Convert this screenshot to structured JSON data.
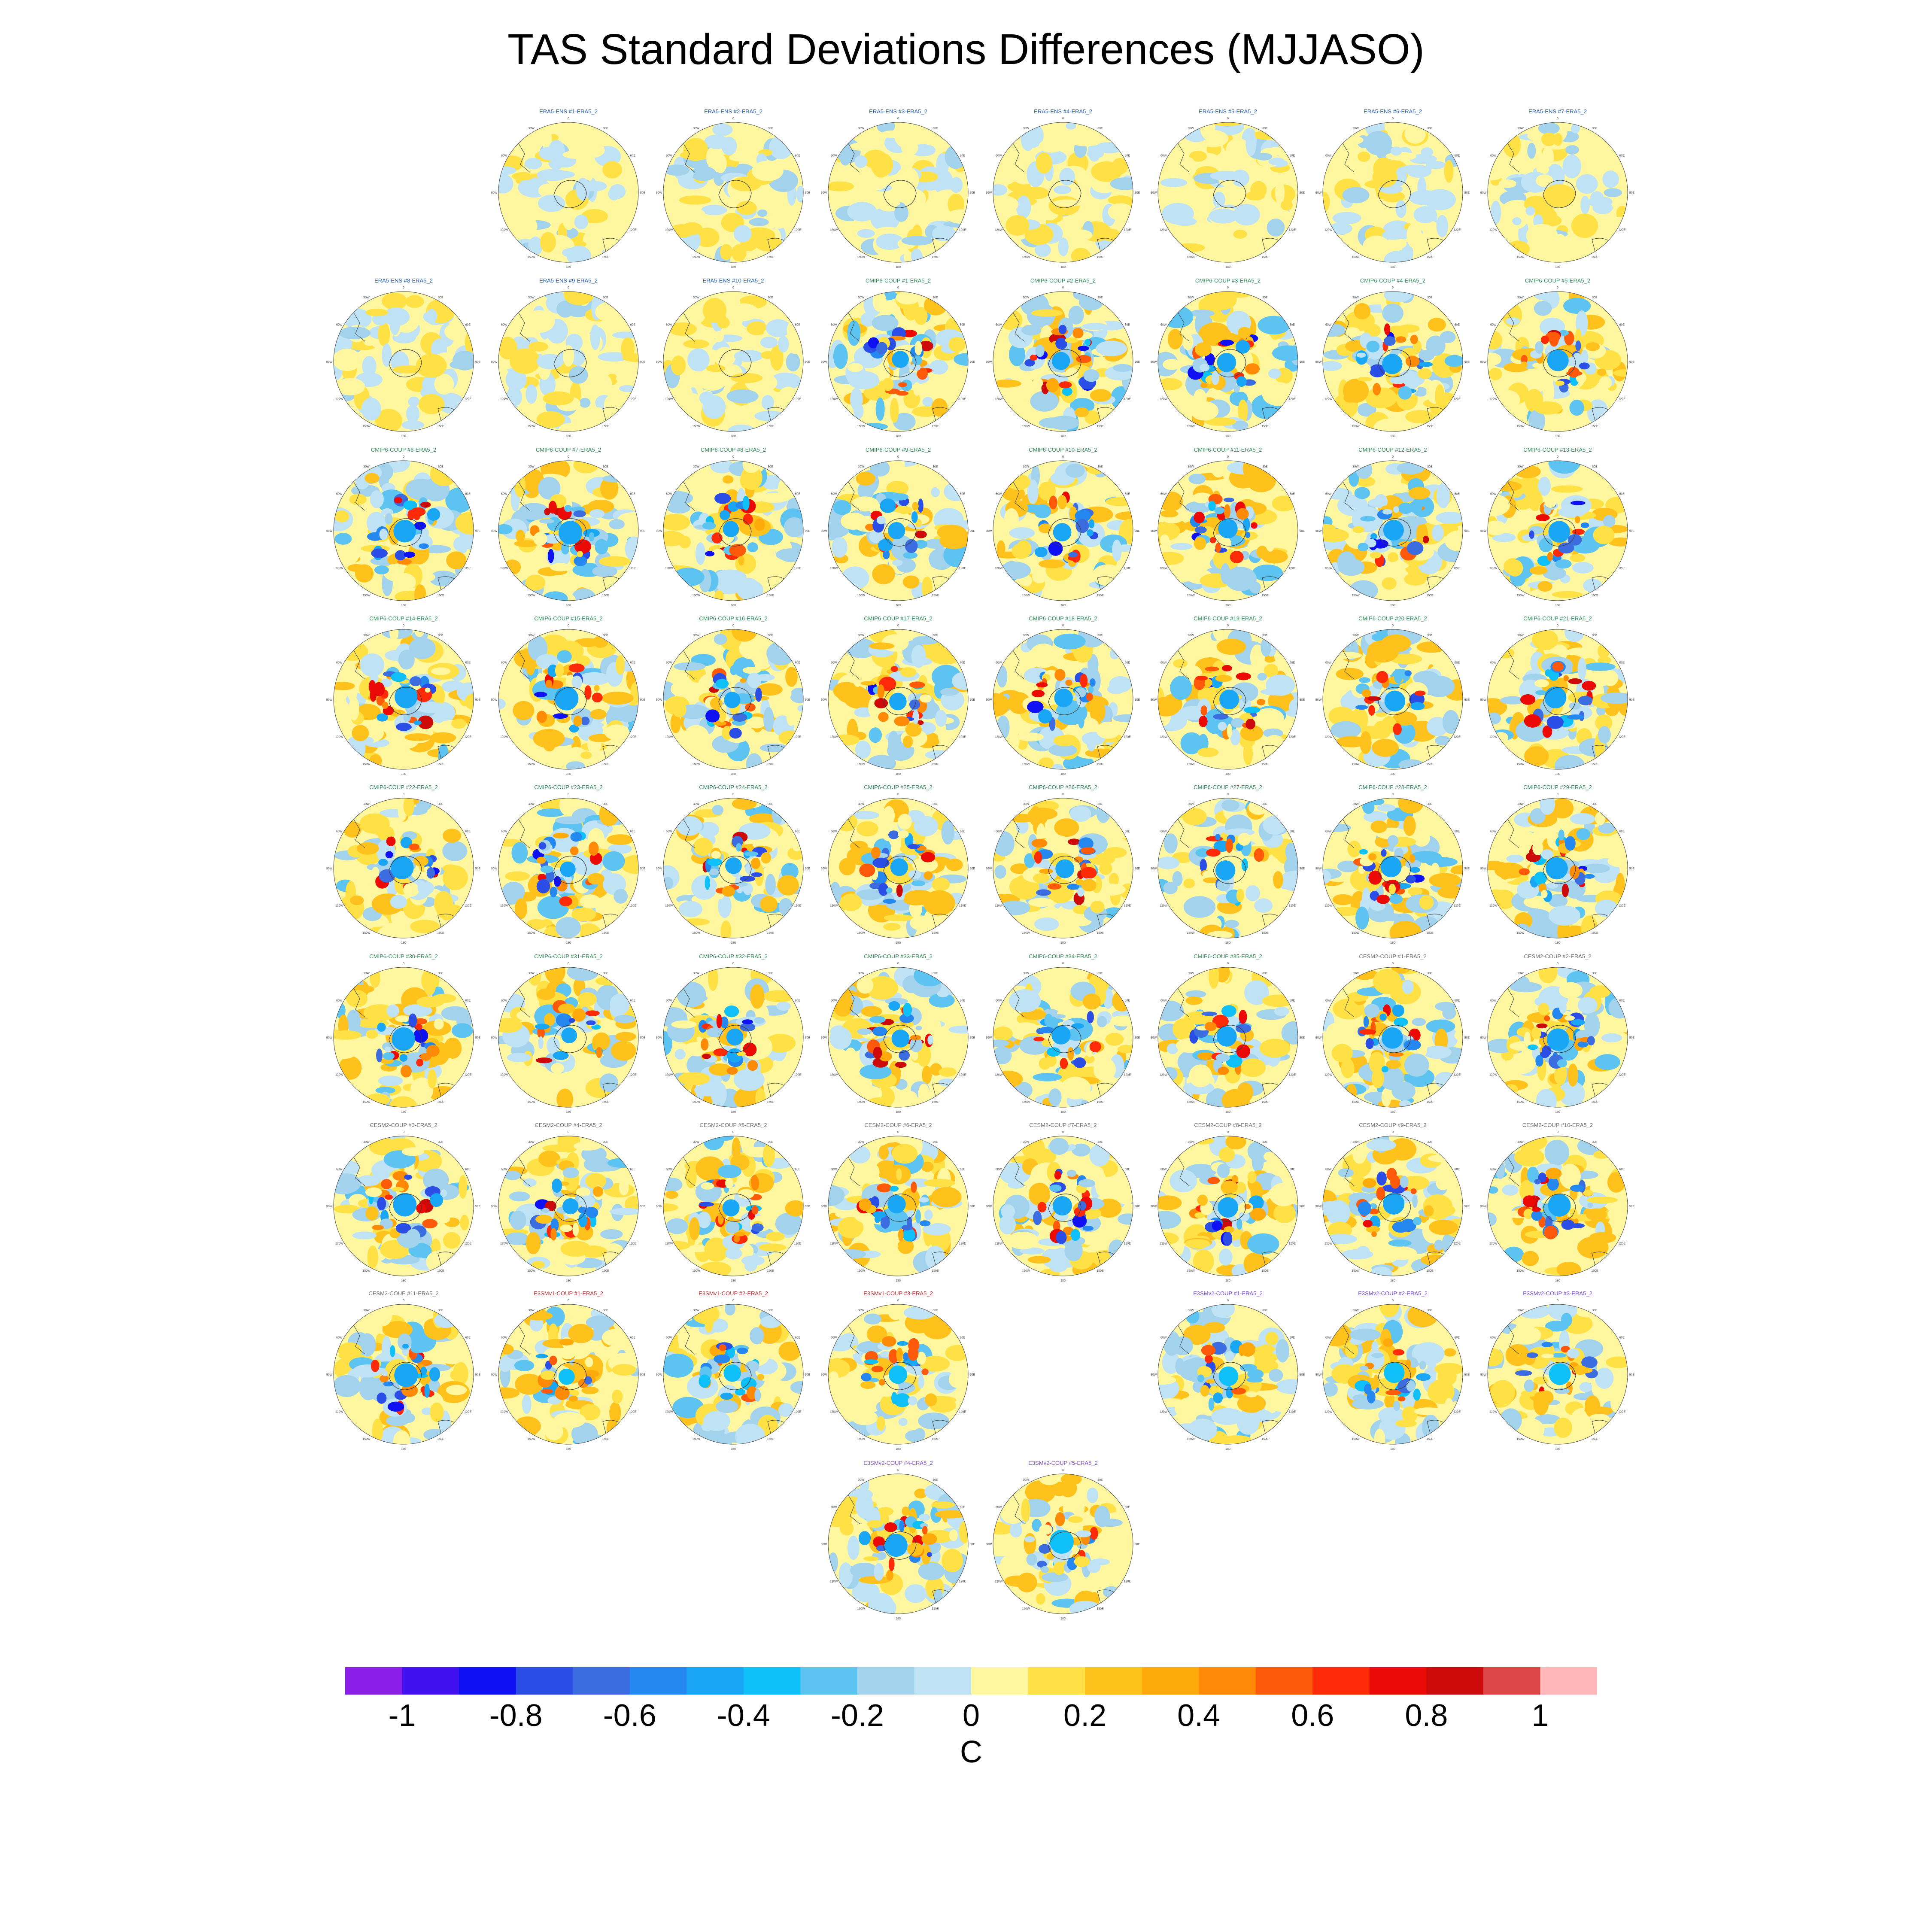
{
  "title": "TAS Standard Deviations Differences (MJJASO)",
  "colors": {
    "colorbar": [
      "#8b1fe8",
      "#4012f0",
      "#1010f5",
      "#2b4fe6",
      "#3b6de0",
      "#2488f0",
      "#18a6f5",
      "#0fc0f8",
      "#5dc3f0",
      "#a3d2ed",
      "#bfe3f5",
      "#fff6a0",
      "#ffe146",
      "#ffc21c",
      "#ffaa0a",
      "#ff8a06",
      "#ff5a0a",
      "#ff2a08",
      "#ec0a06",
      "#cc0a0a",
      "#dc4646",
      "#ffb6b6"
    ],
    "ocean_fill": "#c6e6f6",
    "ensemble_title": "#2060c0",
    "cmip6_title": "#2e8b57",
    "cesm2_title": "#707070",
    "e3sm1_title": "#b03030",
    "e3sm2_title": "#7a4fd0"
  },
  "chart_data": {
    "type": "heatmap",
    "title": "TAS Standard Deviations Differences (MJJASO)",
    "projection": "south-polar-stereographic",
    "colorbar": {
      "units": "C",
      "tick_labels": [
        "-1",
        "-0.8",
        "-0.6",
        "-0.4",
        "-0.2",
        "0",
        "0.2",
        "0.4",
        "0.6",
        "0.8",
        "1"
      ],
      "ticks": [
        -1,
        -0.8,
        -0.6,
        -0.4,
        -0.2,
        0,
        0.2,
        0.4,
        0.6,
        0.8,
        1
      ],
      "levels": [
        -1.1,
        -1,
        -0.9,
        -0.8,
        -0.7,
        -0.6,
        -0.5,
        -0.4,
        -0.3,
        -0.2,
        -0.1,
        0,
        0.1,
        0.2,
        0.3,
        0.4,
        0.5,
        0.6,
        0.7,
        0.8,
        0.9,
        1,
        1.1
      ]
    },
    "map_labels": [
      "0",
      "30E",
      "60E",
      "90E",
      "120E",
      "150E",
      "180",
      "150W",
      "120W",
      "90W",
      "60W",
      "30W"
    ],
    "panels": [
      {
        "label": "ERA5-ENS  #1-ERA5_2",
        "group": "ensemble",
        "strength": 0.15,
        "seed": 1
      },
      {
        "label": "ERA5-ENS  #2-ERA5_2",
        "group": "ensemble",
        "strength": 0.15,
        "seed": 2
      },
      {
        "label": "ERA5-ENS  #3-ERA5_2",
        "group": "ensemble",
        "strength": 0.15,
        "seed": 3
      },
      {
        "label": "ERA5-ENS  #4-ERA5_2",
        "group": "ensemble",
        "strength": 0.15,
        "seed": 4
      },
      {
        "label": "ERA5-ENS  #5-ERA5_2",
        "group": "ensemble",
        "strength": 0.15,
        "seed": 5
      },
      {
        "label": "ERA5-ENS  #6-ERA5_2",
        "group": "ensemble",
        "strength": 0.15,
        "seed": 6
      },
      {
        "label": "ERA5-ENS  #7-ERA5_2",
        "group": "ensemble",
        "strength": 0.15,
        "seed": 7
      },
      {
        "label": "ERA5-ENS  #8-ERA5_2",
        "group": "ensemble",
        "strength": 0.15,
        "seed": 8
      },
      {
        "label": "ERA5-ENS  #9-ERA5_2",
        "group": "ensemble",
        "strength": 0.15,
        "seed": 9
      },
      {
        "label": "ERA5-ENS  #10-ERA5_2",
        "group": "ensemble",
        "strength": 0.15,
        "seed": 10
      },
      {
        "label": "CMIP6-COUP  #1-ERA5_2",
        "group": "cmip6",
        "strength": 0.8,
        "seed": 11
      },
      {
        "label": "CMIP6-COUP  #2-ERA5_2",
        "group": "cmip6",
        "strength": 0.8,
        "seed": 12
      },
      {
        "label": "CMIP6-COUP  #3-ERA5_2",
        "group": "cmip6",
        "strength": 0.8,
        "seed": 13
      },
      {
        "label": "CMIP6-COUP  #4-ERA5_2",
        "group": "cmip6",
        "strength": 0.8,
        "seed": 14
      },
      {
        "label": "CMIP6-COUP  #5-ERA5_2",
        "group": "cmip6",
        "strength": 0.8,
        "seed": 15
      },
      {
        "label": "CMIP6-COUP  #6-ERA5_2",
        "group": "cmip6",
        "strength": 0.8,
        "seed": 16
      },
      {
        "label": "CMIP6-COUP  #7-ERA5_2",
        "group": "cmip6",
        "strength": 0.8,
        "seed": 17
      },
      {
        "label": "CMIP6-COUP  #8-ERA5_2",
        "group": "cmip6",
        "strength": 0.8,
        "seed": 18
      },
      {
        "label": "CMIP6-COUP  #9-ERA5_2",
        "group": "cmip6",
        "strength": 0.8,
        "seed": 19
      },
      {
        "label": "CMIP6-COUP  #10-ERA5_2",
        "group": "cmip6",
        "strength": 0.8,
        "seed": 20
      },
      {
        "label": "CMIP6-COUP  #11-ERA5_2",
        "group": "cmip6",
        "strength": 0.8,
        "seed": 21
      },
      {
        "label": "CMIP6-COUP  #12-ERA5_2",
        "group": "cmip6",
        "strength": 0.8,
        "seed": 22
      },
      {
        "label": "CMIP6-COUP  #13-ERA5_2",
        "group": "cmip6",
        "strength": 0.8,
        "seed": 23
      },
      {
        "label": "CMIP6-COUP  #14-ERA5_2",
        "group": "cmip6",
        "strength": 0.8,
        "seed": 24
      },
      {
        "label": "CMIP6-COUP  #15-ERA5_2",
        "group": "cmip6",
        "strength": 0.8,
        "seed": 25
      },
      {
        "label": "CMIP6-COUP  #16-ERA5_2",
        "group": "cmip6",
        "strength": 0.8,
        "seed": 26
      },
      {
        "label": "CMIP6-COUP  #17-ERA5_2",
        "group": "cmip6",
        "strength": 0.8,
        "seed": 27
      },
      {
        "label": "CMIP6-COUP  #18-ERA5_2",
        "group": "cmip6",
        "strength": 0.8,
        "seed": 28
      },
      {
        "label": "CMIP6-COUP  #19-ERA5_2",
        "group": "cmip6",
        "strength": 0.8,
        "seed": 29
      },
      {
        "label": "CMIP6-COUP  #20-ERA5_2",
        "group": "cmip6",
        "strength": 0.8,
        "seed": 30
      },
      {
        "label": "CMIP6-COUP  #21-ERA5_2",
        "group": "cmip6",
        "strength": 0.8,
        "seed": 31
      },
      {
        "label": "CMIP6-COUP  #22-ERA5_2",
        "group": "cmip6",
        "strength": 0.8,
        "seed": 32
      },
      {
        "label": "CMIP6-COUP  #23-ERA5_2",
        "group": "cmip6",
        "strength": 0.8,
        "seed": 33
      },
      {
        "label": "CMIP6-COUP  #24-ERA5_2",
        "group": "cmip6",
        "strength": 0.8,
        "seed": 34
      },
      {
        "label": "CMIP6-COUP  #25-ERA5_2",
        "group": "cmip6",
        "strength": 0.8,
        "seed": 35
      },
      {
        "label": "CMIP6-COUP  #26-ERA5_2",
        "group": "cmip6",
        "strength": 0.8,
        "seed": 36
      },
      {
        "label": "CMIP6-COUP  #27-ERA5_2",
        "group": "cmip6",
        "strength": 0.8,
        "seed": 37
      },
      {
        "label": "CMIP6-COUP  #28-ERA5_2",
        "group": "cmip6",
        "strength": 0.8,
        "seed": 38
      },
      {
        "label": "CMIP6-COUP  #29-ERA5_2",
        "group": "cmip6",
        "strength": 0.8,
        "seed": 39
      },
      {
        "label": "CMIP6-COUP  #30-ERA5_2",
        "group": "cmip6",
        "strength": 0.8,
        "seed": 40
      },
      {
        "label": "CMIP6-COUP  #31-ERA5_2",
        "group": "cmip6",
        "strength": 0.8,
        "seed": 41
      },
      {
        "label": "CMIP6-COUP  #32-ERA5_2",
        "group": "cmip6",
        "strength": 0.8,
        "seed": 42
      },
      {
        "label": "CMIP6-COUP  #33-ERA5_2",
        "group": "cmip6",
        "strength": 0.8,
        "seed": 43
      },
      {
        "label": "CMIP6-COUP  #34-ERA5_2",
        "group": "cmip6",
        "strength": 0.8,
        "seed": 44
      },
      {
        "label": "CMIP6-COUP  #35-ERA5_2",
        "group": "cmip6",
        "strength": 0.8,
        "seed": 45
      },
      {
        "label": "CESM2-COUP  #1-ERA5_2",
        "group": "cesm2",
        "strength": 0.75,
        "seed": 46
      },
      {
        "label": "CESM2-COUP  #2-ERA5_2",
        "group": "cesm2",
        "strength": 0.75,
        "seed": 47
      },
      {
        "label": "CESM2-COUP  #3-ERA5_2",
        "group": "cesm2",
        "strength": 0.75,
        "seed": 48
      },
      {
        "label": "CESM2-COUP  #4-ERA5_2",
        "group": "cesm2",
        "strength": 0.75,
        "seed": 49
      },
      {
        "label": "CESM2-COUP  #5-ERA5_2",
        "group": "cesm2",
        "strength": 0.75,
        "seed": 50
      },
      {
        "label": "CESM2-COUP  #6-ERA5_2",
        "group": "cesm2",
        "strength": 0.75,
        "seed": 51
      },
      {
        "label": "CESM2-COUP  #7-ERA5_2",
        "group": "cesm2",
        "strength": 0.75,
        "seed": 52
      },
      {
        "label": "CESM2-COUP  #8-ERA5_2",
        "group": "cesm2",
        "strength": 0.75,
        "seed": 53
      },
      {
        "label": "CESM2-COUP  #9-ERA5_2",
        "group": "cesm2",
        "strength": 0.75,
        "seed": 54
      },
      {
        "label": "CESM2-COUP  #10-ERA5_2",
        "group": "cesm2",
        "strength": 0.75,
        "seed": 55
      },
      {
        "label": "CESM2-COUP  #11-ERA5_2",
        "group": "cesm2",
        "strength": 0.75,
        "seed": 56
      },
      {
        "label": "E3SMv1-COUP  #1-ERA5_2",
        "group": "e3sm1",
        "strength": 0.7,
        "seed": 57
      },
      {
        "label": "E3SMv1-COUP  #2-ERA5_2",
        "group": "e3sm1",
        "strength": 0.7,
        "seed": 58
      },
      {
        "label": "E3SMv1-COUP  #3-ERA5_2",
        "group": "e3sm1",
        "strength": 0.6,
        "seed": 59
      },
      {
        "label": "",
        "group": "blank",
        "strength": 0,
        "seed": 0
      },
      {
        "label": "E3SMv2-COUP  #1-ERA5_2",
        "group": "e3sm2",
        "strength": 0.7,
        "seed": 60
      },
      {
        "label": "E3SMv2-COUP  #2-ERA5_2",
        "group": "e3sm2",
        "strength": 0.7,
        "seed": 61
      },
      {
        "label": "E3SMv2-COUP  #3-ERA5_2",
        "group": "e3sm2",
        "strength": 0.7,
        "seed": 62
      },
      {
        "label": "E3SMv2-COUP  #4-ERA5_2",
        "group": "e3sm2",
        "strength": 0.75,
        "seed": 63
      },
      {
        "label": "E3SMv2-COUP  #5-ERA5_2",
        "group": "e3sm2",
        "strength": 0.7,
        "seed": 64
      }
    ]
  }
}
